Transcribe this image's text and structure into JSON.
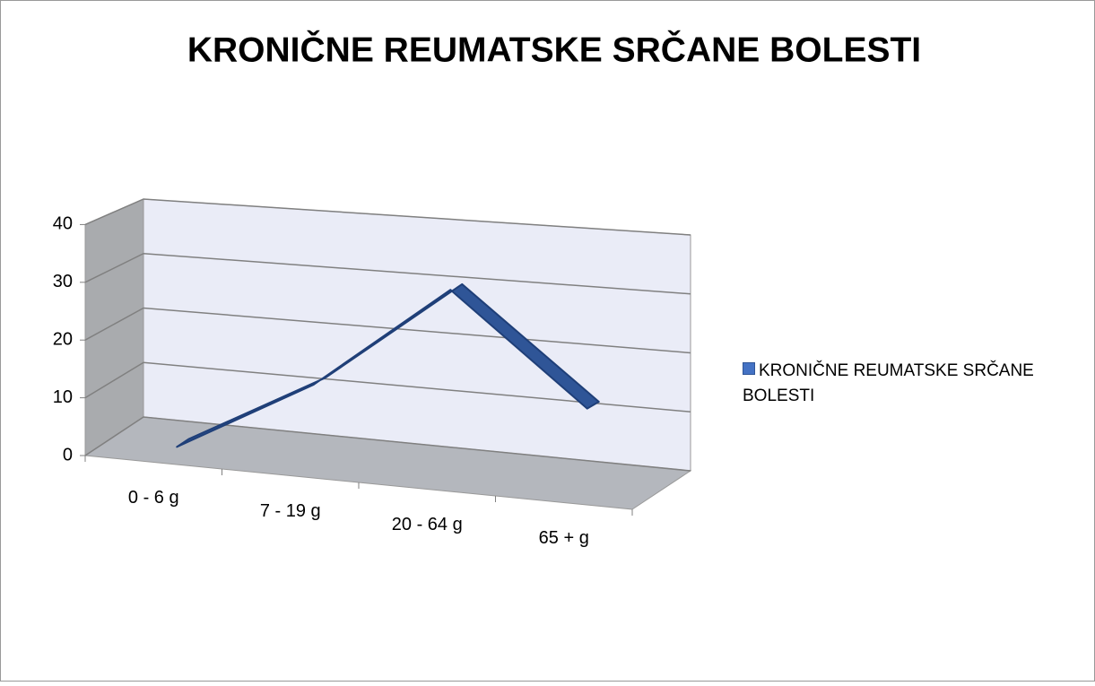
{
  "chart_data": {
    "type": "line3d",
    "title": "KRONIČNE REUMATSKE SRČANE BOLESTI",
    "categories": [
      "0 - 6 g",
      "7 - 19 g",
      "20 - 64 g",
      "65 + g"
    ],
    "series": [
      {
        "name": "KRONIČNE REUMATSKE SRČANE BOLESTI",
        "color": "#2f5597",
        "values": [
          0,
          13,
          31,
          13
        ]
      }
    ],
    "ylim": [
      0,
      40
    ],
    "yticks": [
      0,
      10,
      20,
      30,
      40
    ],
    "grid": true,
    "legend": "right"
  }
}
